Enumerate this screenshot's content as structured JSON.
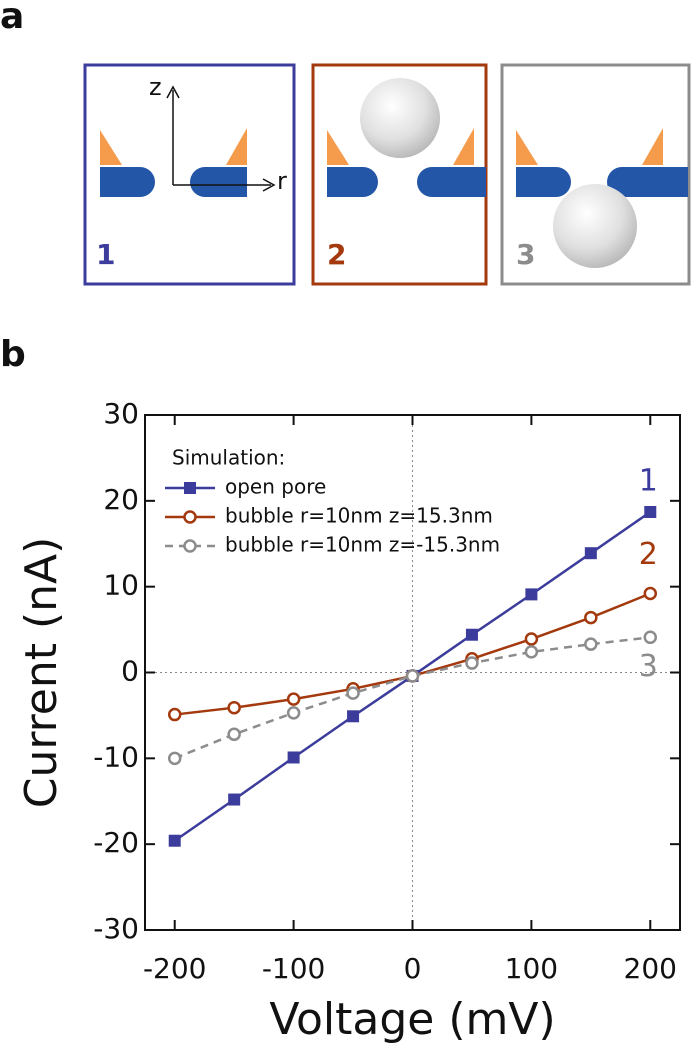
{
  "figure": {
    "panel_labels": [
      "a",
      "b"
    ],
    "diagram": {
      "axis_labels": [
        "z",
        "r"
      ],
      "boxes": [
        {
          "label": "1"
        },
        {
          "label": "2"
        },
        {
          "label": "3"
        }
      ]
    }
  },
  "chart_data": {
    "type": "line",
    "x_label": "Voltage (mV)",
    "y_label": "Current (nA)",
    "legend_title": "Simulation:",
    "x": [
      -200,
      -150,
      -100,
      -50,
      0,
      50,
      100,
      150,
      200
    ],
    "series": [
      {
        "name": "open pore",
        "color": "#3c3c9c",
        "marker": "square",
        "dashed": false,
        "tag": "1",
        "values": [
          -19.6,
          -14.8,
          -9.9,
          -5.1,
          -0.4,
          4.4,
          9.1,
          13.9,
          18.7
        ]
      },
      {
        "name": "bubble r=10nm z=15.3nm",
        "color": "#a3390d",
        "marker": "circle-open",
        "dashed": false,
        "tag": "2",
        "values": [
          -4.9,
          -4.1,
          -3.1,
          -1.9,
          -0.4,
          1.6,
          3.9,
          6.4,
          9.2
        ]
      },
      {
        "name": "bubble r=10nm z=-15.3nm",
        "color": "#8c8c8c",
        "marker": "circle-open",
        "dashed": true,
        "tag": "3",
        "values": [
          -10,
          -7.2,
          -4.7,
          -2.4,
          -0.4,
          1.1,
          2.4,
          3.3,
          4.1
        ]
      }
    ],
    "xlim": [
      -225,
      225
    ],
    "ylim": [
      -30,
      30
    ],
    "xticks": [
      -200,
      -100,
      0,
      100,
      200
    ],
    "yticks": [
      -30,
      -20,
      -10,
      0,
      10,
      20,
      30
    ],
    "zero_lines": true,
    "legend": "upper left"
  }
}
